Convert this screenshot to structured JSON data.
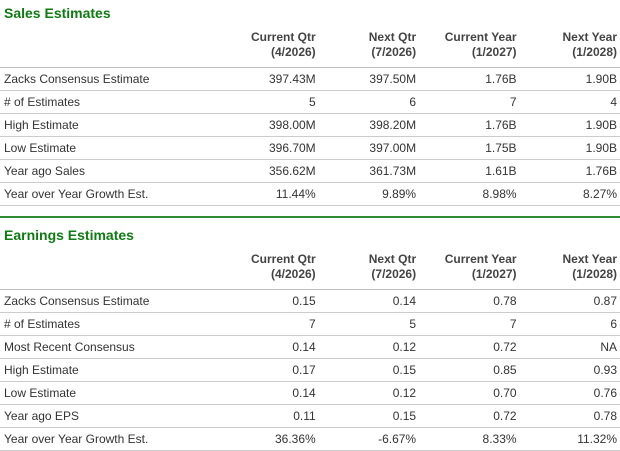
{
  "colors": {
    "heading_green": "#0e7c12",
    "divider_green": "#2e8b33",
    "body_text": "#333333",
    "border_gray": "#cccccc"
  },
  "sections": [
    {
      "title": "Sales Estimates",
      "columns": [
        {
          "label": "Current Qtr",
          "sub": "(4/2026)"
        },
        {
          "label": "Next Qtr",
          "sub": "(7/2026)"
        },
        {
          "label": "Current Year",
          "sub": "(1/2027)"
        },
        {
          "label": "Next Year",
          "sub": "(1/2028)"
        }
      ],
      "rows": [
        {
          "label": "Zacks Consensus Estimate",
          "values": [
            "397.43M",
            "397.50M",
            "1.76B",
            "1.90B"
          ]
        },
        {
          "label": "# of Estimates",
          "values": [
            "5",
            "6",
            "7",
            "4"
          ]
        },
        {
          "label": "High Estimate",
          "values": [
            "398.00M",
            "398.20M",
            "1.76B",
            "1.90B"
          ]
        },
        {
          "label": "Low Estimate",
          "values": [
            "396.70M",
            "397.00M",
            "1.75B",
            "1.90B"
          ]
        },
        {
          "label": "Year ago Sales",
          "values": [
            "356.62M",
            "361.73M",
            "1.61B",
            "1.76B"
          ]
        },
        {
          "label": "Year over Year Growth Est.",
          "values": [
            "11.44%",
            "9.89%",
            "8.98%",
            "8.27%"
          ]
        }
      ]
    },
    {
      "title": "Earnings Estimates",
      "columns": [
        {
          "label": "Current Qtr",
          "sub": "(4/2026)"
        },
        {
          "label": "Next Qtr",
          "sub": "(7/2026)"
        },
        {
          "label": "Current Year",
          "sub": "(1/2027)"
        },
        {
          "label": "Next Year",
          "sub": "(1/2028)"
        }
      ],
      "rows": [
        {
          "label": "Zacks Consensus Estimate",
          "values": [
            "0.15",
            "0.14",
            "0.78",
            "0.87"
          ]
        },
        {
          "label": "# of Estimates",
          "values": [
            "7",
            "5",
            "7",
            "6"
          ]
        },
        {
          "label": "Most Recent Consensus",
          "values": [
            "0.14",
            "0.12",
            "0.72",
            "NA"
          ]
        },
        {
          "label": "High Estimate",
          "values": [
            "0.17",
            "0.15",
            "0.85",
            "0.93"
          ]
        },
        {
          "label": "Low Estimate",
          "values": [
            "0.14",
            "0.12",
            "0.70",
            "0.76"
          ]
        },
        {
          "label": "Year ago EPS",
          "values": [
            "0.11",
            "0.15",
            "0.72",
            "0.78"
          ]
        },
        {
          "label": "Year over Year Growth Est.",
          "values": [
            "36.36%",
            "-6.67%",
            "8.33%",
            "11.32%"
          ]
        }
      ]
    }
  ]
}
